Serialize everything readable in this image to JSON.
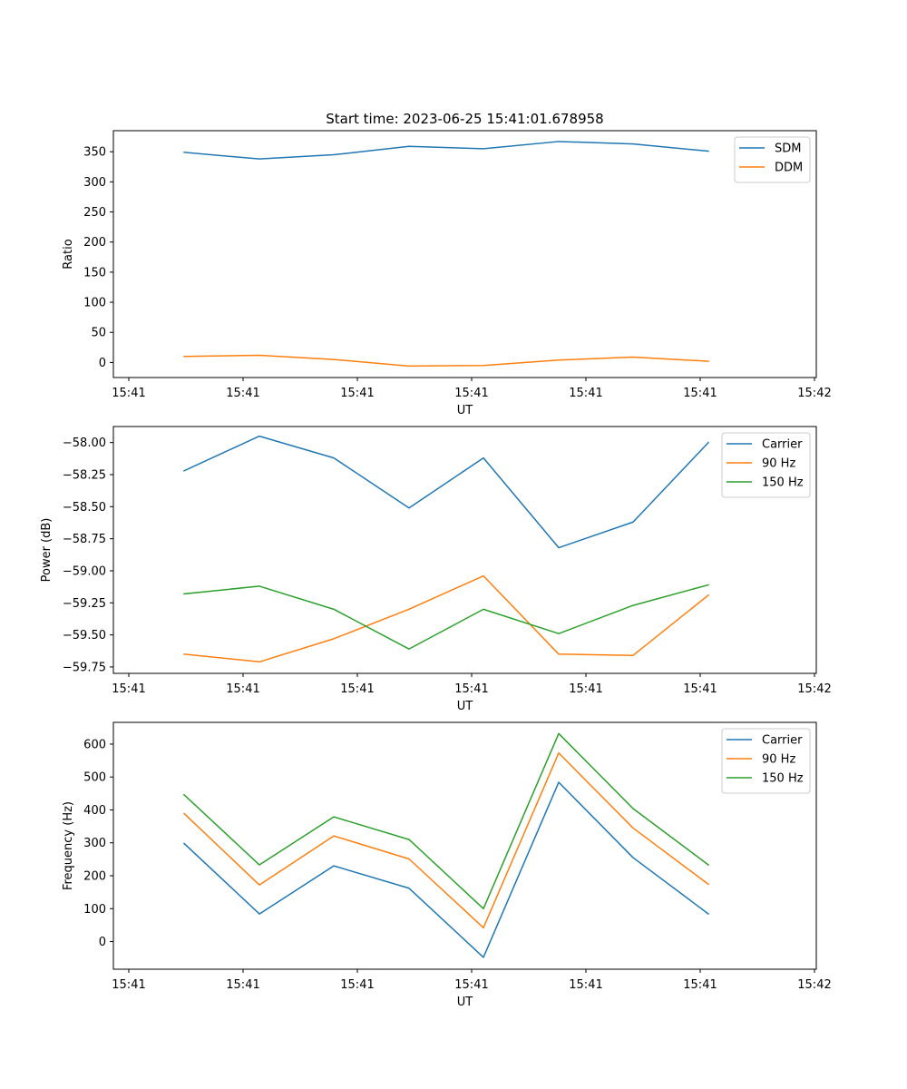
{
  "figure_title": "Start time: 2023-06-25 15:41:01.678958",
  "colors": {
    "blue": "#1f77b4",
    "orange": "#ff7f0e",
    "green": "#2ca02c"
  },
  "chart_data": [
    {
      "type": "line",
      "title": "Start time: 2023-06-25 15:41:01.678958",
      "xlabel": "UT",
      "ylabel": "Ratio",
      "x_tick_labels": [
        "15:41",
        "15:41",
        "15:41",
        "15:41",
        "15:41",
        "15:41",
        "15:42"
      ],
      "y_ticks": [
        0,
        50,
        100,
        150,
        200,
        250,
        300,
        350
      ],
      "y_tick_labels": [
        "0",
        "50",
        "100",
        "150",
        "200",
        "250",
        "300",
        "350"
      ],
      "ylim": [
        -25,
        385
      ],
      "legend_position": "top-right",
      "grid": false,
      "series": [
        {
          "name": "SDM",
          "color": "#1f77b4",
          "values": [
            349,
            338,
            345,
            359,
            355,
            367,
            363,
            351
          ]
        },
        {
          "name": "DDM",
          "color": "#ff7f0e",
          "values": [
            10,
            12,
            5,
            -6,
            -5,
            4,
            9,
            2
          ]
        }
      ]
    },
    {
      "type": "line",
      "title": "",
      "xlabel": "UT",
      "ylabel": "Power (dB)",
      "x_tick_labels": [
        "15:41",
        "15:41",
        "15:41",
        "15:41",
        "15:41",
        "15:41",
        "15:42"
      ],
      "y_ticks": [
        -59.75,
        -59.5,
        -59.25,
        -59.0,
        -58.75,
        -58.5,
        -58.25,
        -58.0
      ],
      "y_tick_labels": [
        "−59.75",
        "−59.50",
        "−59.25",
        "−59.00",
        "−58.75",
        "−58.50",
        "−58.25",
        "−58.00"
      ],
      "ylim": [
        -59.8,
        -57.875
      ],
      "legend_position": "top-right",
      "grid": false,
      "series": [
        {
          "name": "Carrier",
          "color": "#1f77b4",
          "values": [
            -58.22,
            -57.95,
            -58.12,
            -58.51,
            -58.12,
            -58.82,
            -58.62,
            -58.0
          ]
        },
        {
          "name": "90 Hz",
          "color": "#ff7f0e",
          "values": [
            -59.65,
            -59.71,
            -59.53,
            -59.3,
            -59.04,
            -59.65,
            -59.66,
            -59.19
          ]
        },
        {
          "name": "150 Hz",
          "color": "#2ca02c",
          "values": [
            -59.18,
            -59.12,
            -59.3,
            -59.61,
            -59.3,
            -59.49,
            -59.27,
            -59.11
          ]
        }
      ]
    },
    {
      "type": "line",
      "title": "",
      "xlabel": "UT",
      "ylabel": "Frequency (Hz)",
      "x_tick_labels": [
        "15:41",
        "15:41",
        "15:41",
        "15:41",
        "15:41",
        "15:41",
        "15:42"
      ],
      "y_ticks": [
        0,
        100,
        200,
        300,
        400,
        500,
        600
      ],
      "y_tick_labels": [
        "0",
        "100",
        "200",
        "300",
        "400",
        "500",
        "600"
      ],
      "ylim": [
        -84,
        666
      ],
      "legend_position": "top-right",
      "grid": false,
      "series": [
        {
          "name": "Carrier",
          "color": "#1f77b4",
          "values": [
            298,
            84,
            230,
            162,
            -48,
            484,
            255,
            84
          ]
        },
        {
          "name": "90 Hz",
          "color": "#ff7f0e",
          "values": [
            389,
            172,
            321,
            251,
            42,
            573,
            345,
            174
          ]
        },
        {
          "name": "150 Hz",
          "color": "#2ca02c",
          "values": [
            446,
            233,
            379,
            310,
            100,
            632,
            404,
            233
          ]
        }
      ]
    }
  ]
}
